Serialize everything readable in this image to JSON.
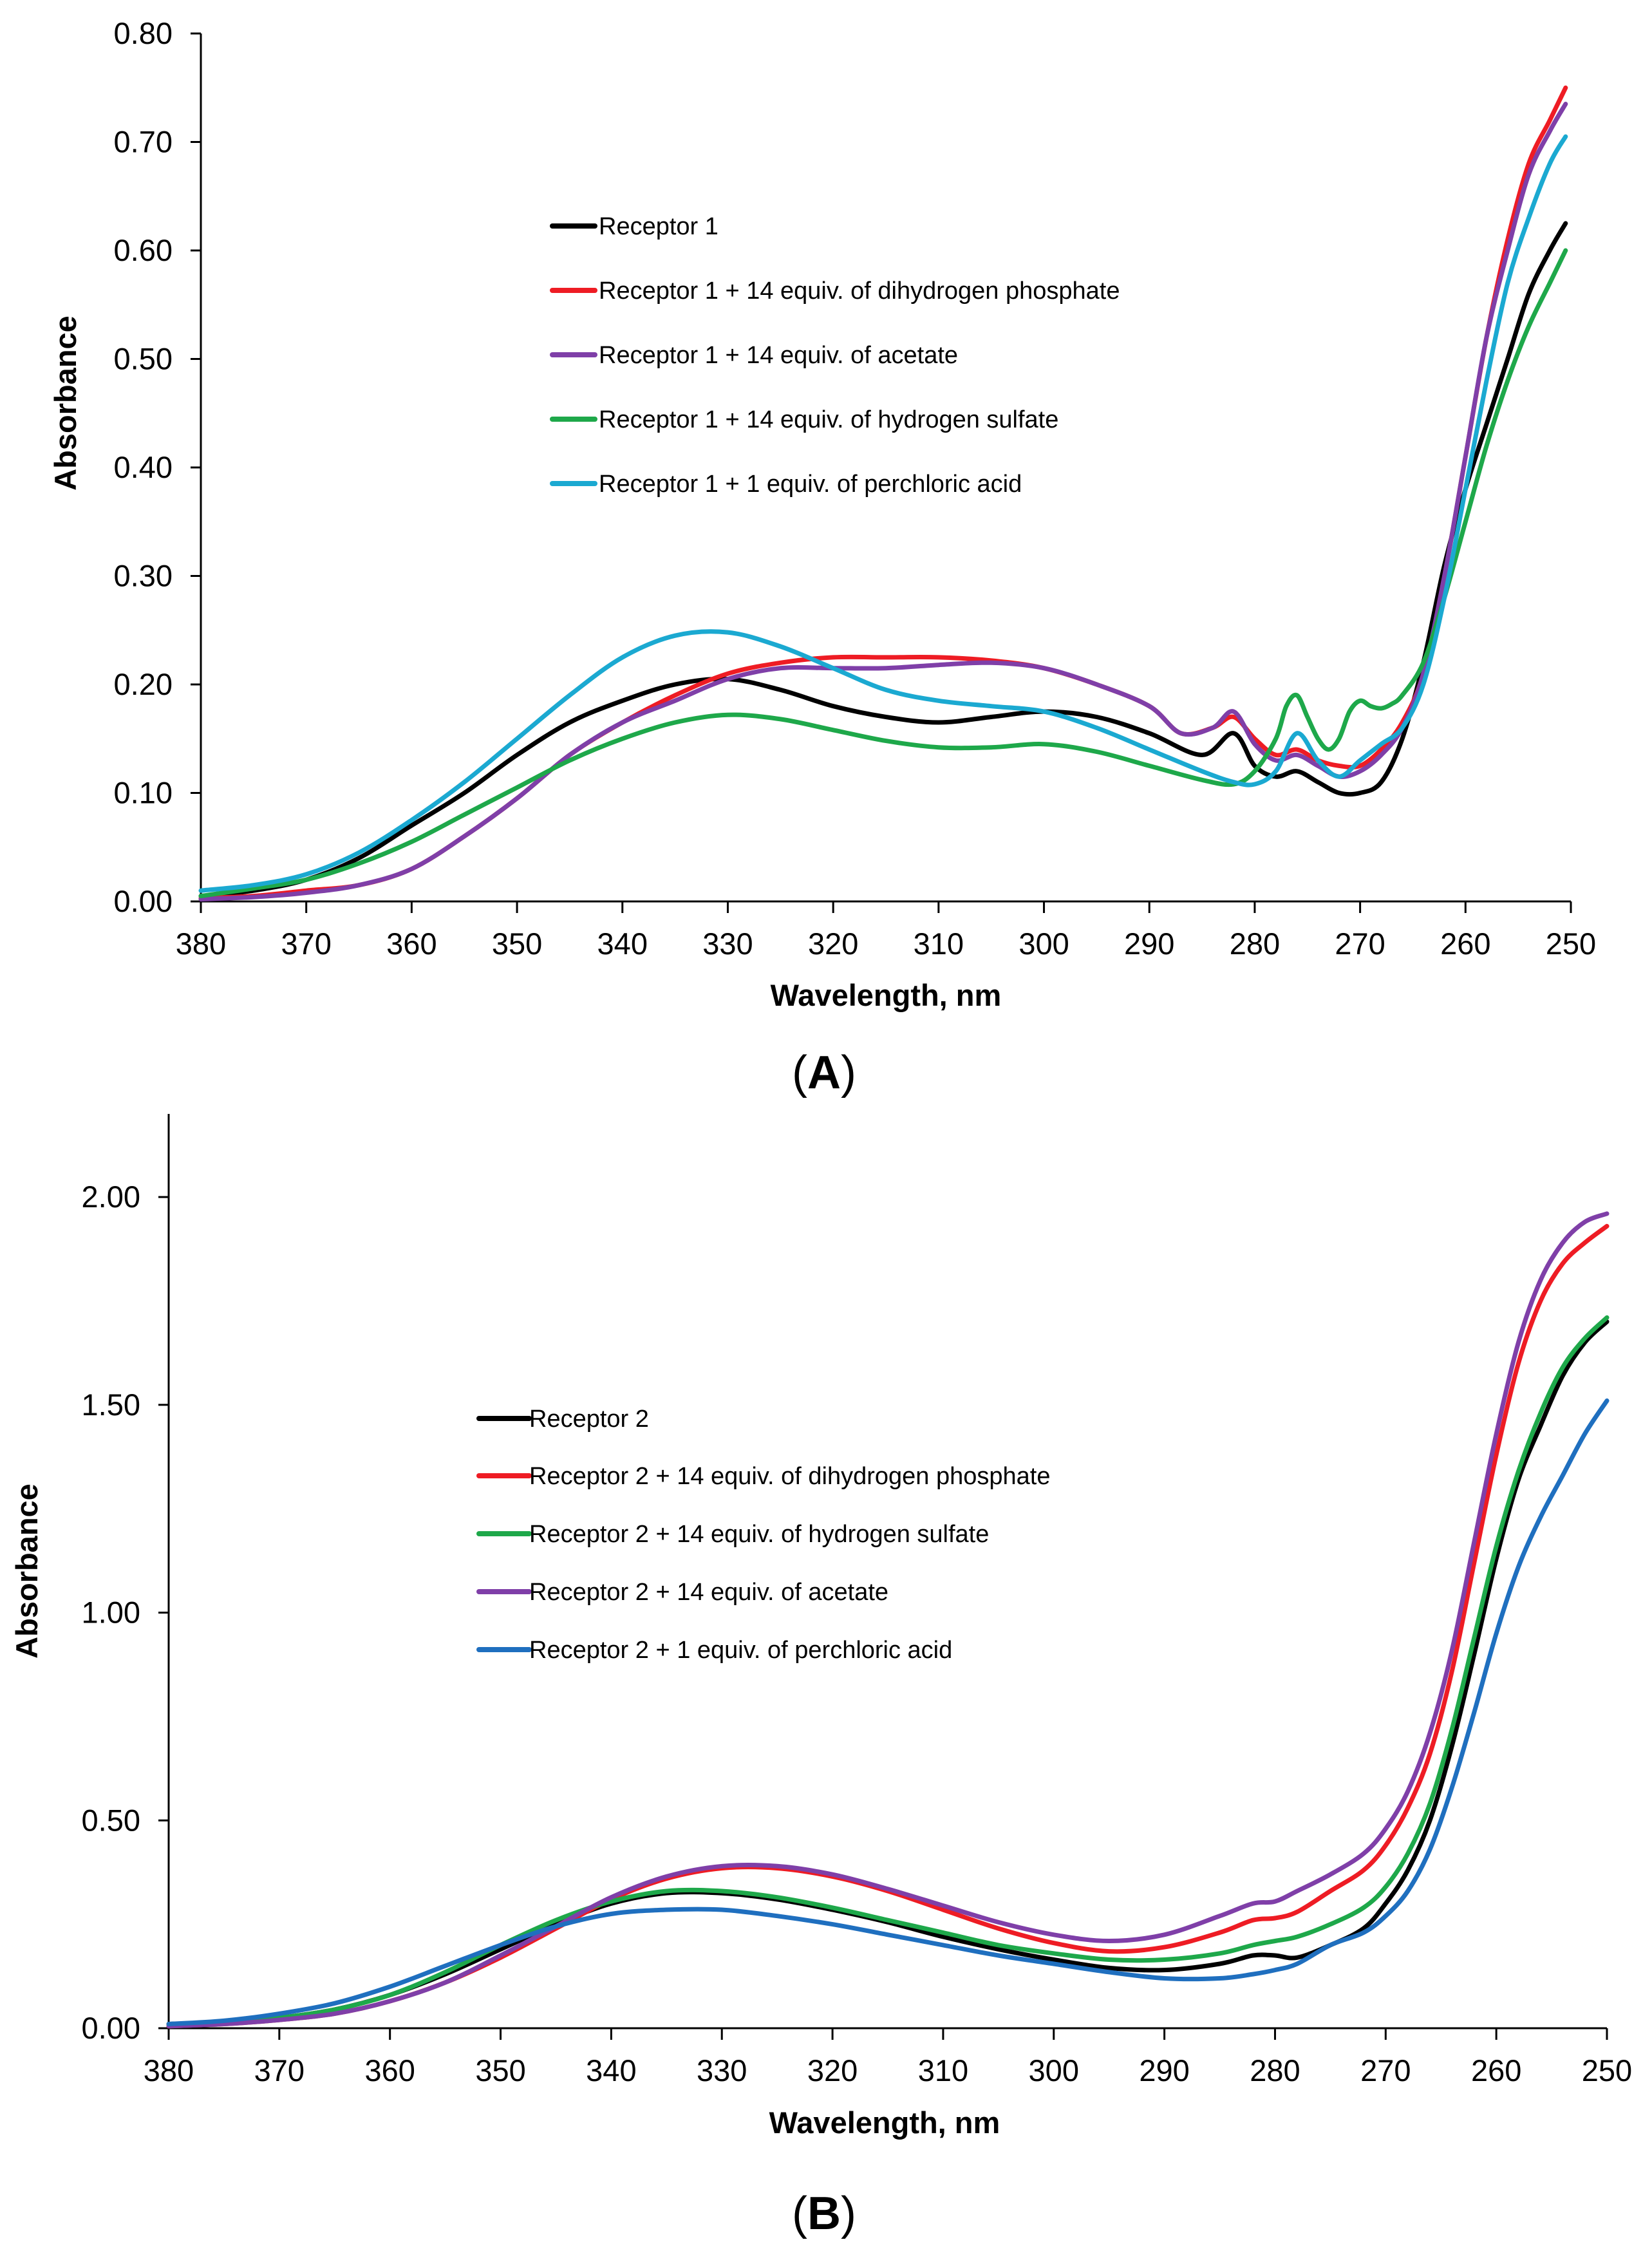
{
  "chart_data": [
    {
      "id": "A",
      "type": "line",
      "panel_label": "A",
      "xlabel": "Wavelength, nm",
      "ylabel": "Absorbance",
      "xlim": [
        380,
        250
      ],
      "ylim": [
        0,
        0.8
      ],
      "x_ticks": [
        "380",
        "370",
        "360",
        "350",
        "340",
        "330",
        "320",
        "310",
        "300",
        "290",
        "280",
        "270",
        "260",
        "250"
      ],
      "y_ticks": [
        "0.00",
        "0.10",
        "0.20",
        "0.30",
        "0.40",
        "0.50",
        "0.60",
        "0.70",
        "0.80"
      ],
      "legend_position": "upper-middle",
      "series": [
        {
          "name": "Receptor 1",
          "color": "#000000",
          "x": [
            380,
            375,
            370,
            365,
            360,
            355,
            350,
            345,
            340,
            335,
            330,
            325,
            320,
            315,
            310,
            305,
            300,
            295,
            290,
            285,
            282,
            280,
            278,
            276,
            274,
            272,
            270,
            268,
            266,
            264,
            262,
            260,
            258,
            256,
            254,
            252,
            250.5
          ],
          "y": [
            0.005,
            0.01,
            0.02,
            0.04,
            0.07,
            0.1,
            0.135,
            0.165,
            0.185,
            0.2,
            0.205,
            0.195,
            0.18,
            0.17,
            0.165,
            0.17,
            0.175,
            0.17,
            0.155,
            0.135,
            0.155,
            0.125,
            0.115,
            0.12,
            0.11,
            0.1,
            0.1,
            0.11,
            0.15,
            0.22,
            0.31,
            0.38,
            0.44,
            0.5,
            0.56,
            0.6,
            0.625
          ]
        },
        {
          "name": "Receptor 1 + 14 equiv. of dihydrogen phosphate",
          "color": "#ee1c24",
          "x": [
            380,
            375,
            370,
            365,
            360,
            355,
            350,
            345,
            340,
            335,
            330,
            325,
            320,
            315,
            310,
            305,
            300,
            295,
            290,
            287,
            284,
            282,
            280,
            278,
            276,
            274,
            272,
            270,
            268,
            266,
            264,
            262,
            260,
            258,
            256,
            254,
            252,
            250.5
          ],
          "y": [
            0.003,
            0.005,
            0.01,
            0.015,
            0.03,
            0.06,
            0.095,
            0.135,
            0.165,
            0.19,
            0.21,
            0.22,
            0.225,
            0.225,
            0.225,
            0.222,
            0.215,
            0.2,
            0.18,
            0.155,
            0.16,
            0.17,
            0.15,
            0.135,
            0.14,
            0.13,
            0.125,
            0.125,
            0.14,
            0.165,
            0.21,
            0.3,
            0.41,
            0.52,
            0.61,
            0.68,
            0.72,
            0.75
          ]
        },
        {
          "name": "Receptor 1 + 14 equiv. of acetate",
          "color": "#7f3fa8",
          "x": [
            380,
            375,
            370,
            365,
            360,
            355,
            350,
            345,
            340,
            335,
            330,
            325,
            320,
            315,
            310,
            305,
            300,
            295,
            290,
            287,
            284,
            282,
            280,
            278,
            276,
            274,
            272,
            270,
            268,
            266,
            264,
            262,
            260,
            258,
            256,
            254,
            252,
            250.5
          ],
          "y": [
            0.002,
            0.004,
            0.008,
            0.015,
            0.03,
            0.06,
            0.095,
            0.135,
            0.165,
            0.185,
            0.205,
            0.215,
            0.215,
            0.215,
            0.218,
            0.22,
            0.215,
            0.2,
            0.18,
            0.155,
            0.16,
            0.175,
            0.145,
            0.13,
            0.135,
            0.125,
            0.115,
            0.12,
            0.135,
            0.16,
            0.21,
            0.3,
            0.41,
            0.52,
            0.6,
            0.67,
            0.71,
            0.735
          ]
        },
        {
          "name": "Receptor 1 + 14  equiv. of hydrogen sulfate",
          "color": "#1ea84a",
          "x": [
            380,
            375,
            370,
            365,
            360,
            355,
            350,
            345,
            340,
            335,
            330,
            325,
            320,
            315,
            310,
            305,
            300,
            295,
            290,
            285,
            282,
            280,
            278,
            277,
            276,
            275,
            274,
            273,
            272,
            271,
            270,
            269,
            268,
            267,
            266,
            264,
            262,
            260,
            258,
            256,
            254,
            252,
            250.5
          ],
          "y": [
            0.005,
            0.012,
            0.02,
            0.035,
            0.055,
            0.08,
            0.105,
            0.13,
            0.15,
            0.165,
            0.172,
            0.168,
            0.158,
            0.148,
            0.142,
            0.142,
            0.145,
            0.138,
            0.125,
            0.112,
            0.108,
            0.12,
            0.15,
            0.18,
            0.19,
            0.17,
            0.15,
            0.14,
            0.15,
            0.175,
            0.185,
            0.18,
            0.178,
            0.182,
            0.19,
            0.22,
            0.28,
            0.35,
            0.42,
            0.48,
            0.53,
            0.57,
            0.6
          ]
        },
        {
          "name": "Receptor 1 + 1 equiv. of perchloric acid",
          "color": "#1ba9d1",
          "x": [
            380,
            375,
            370,
            365,
            360,
            355,
            350,
            345,
            340,
            335,
            330,
            325,
            320,
            315,
            310,
            305,
            300,
            295,
            290,
            285,
            282,
            280,
            278,
            276,
            274,
            272,
            270,
            268,
            266,
            264,
            262,
            260,
            258,
            256,
            254,
            252,
            250.5
          ],
          "y": [
            0.01,
            0.015,
            0.025,
            0.045,
            0.075,
            0.11,
            0.15,
            0.19,
            0.225,
            0.245,
            0.248,
            0.235,
            0.215,
            0.195,
            0.185,
            0.18,
            0.175,
            0.16,
            0.14,
            0.12,
            0.11,
            0.108,
            0.12,
            0.155,
            0.13,
            0.115,
            0.13,
            0.145,
            0.16,
            0.2,
            0.28,
            0.38,
            0.48,
            0.57,
            0.63,
            0.68,
            0.705
          ]
        }
      ]
    },
    {
      "id": "B",
      "type": "line",
      "panel_label": "B",
      "xlabel": "Wavelength, nm",
      "ylabel": "Absorbance",
      "xlim": [
        380,
        250
      ],
      "ylim": [
        0,
        2.2
      ],
      "x_ticks": [
        "380",
        "370",
        "360",
        "350",
        "340",
        "330",
        "320",
        "310",
        "300",
        "290",
        "280",
        "270",
        "260",
        "250"
      ],
      "y_ticks": [
        "0.00",
        "0.50",
        "1.00",
        "1.50",
        "2.00"
      ],
      "legend_position": "middle-left",
      "series": [
        {
          "name": "Receptor 2",
          "color": "#000000",
          "x": [
            380,
            375,
            370,
            365,
            360,
            355,
            350,
            345,
            340,
            335,
            330,
            325,
            320,
            315,
            310,
            305,
            300,
            295,
            290,
            285,
            282,
            280,
            278,
            275,
            272,
            270,
            268,
            266,
            264,
            262,
            260,
            258,
            256,
            254,
            252,
            250
          ],
          "y": [
            0.01,
            0.015,
            0.025,
            0.045,
            0.08,
            0.13,
            0.19,
            0.25,
            0.3,
            0.325,
            0.325,
            0.31,
            0.285,
            0.255,
            0.22,
            0.19,
            0.165,
            0.145,
            0.14,
            0.155,
            0.175,
            0.175,
            0.17,
            0.2,
            0.24,
            0.3,
            0.38,
            0.5,
            0.68,
            0.9,
            1.13,
            1.32,
            1.45,
            1.57,
            1.65,
            1.7
          ]
        },
        {
          "name": "Receptor 2 + 14  equiv. of dihydrogen phosphate",
          "color": "#ee1c24",
          "x": [
            380,
            375,
            370,
            365,
            360,
            355,
            350,
            345,
            340,
            335,
            330,
            325,
            320,
            315,
            310,
            305,
            300,
            295,
            290,
            285,
            282,
            280,
            278,
            275,
            272,
            270,
            268,
            266,
            264,
            262,
            260,
            258,
            256,
            254,
            252,
            250
          ],
          "y": [
            0.005,
            0.01,
            0.02,
            0.035,
            0.065,
            0.11,
            0.17,
            0.24,
            0.31,
            0.36,
            0.385,
            0.385,
            0.365,
            0.33,
            0.285,
            0.24,
            0.205,
            0.185,
            0.195,
            0.23,
            0.26,
            0.265,
            0.28,
            0.33,
            0.38,
            0.44,
            0.53,
            0.66,
            0.86,
            1.12,
            1.38,
            1.6,
            1.75,
            1.84,
            1.89,
            1.93
          ]
        },
        {
          "name": "Receptor 2 + 14  equiv. of hydrogen sulfate",
          "color": "#1ea84a",
          "x": [
            380,
            375,
            370,
            365,
            360,
            355,
            350,
            345,
            340,
            335,
            330,
            325,
            320,
            315,
            310,
            305,
            300,
            295,
            290,
            285,
            282,
            280,
            278,
            275,
            272,
            270,
            268,
            266,
            264,
            262,
            260,
            258,
            256,
            254,
            252,
            250
          ],
          "y": [
            0.01,
            0.015,
            0.025,
            0.045,
            0.08,
            0.135,
            0.2,
            0.26,
            0.305,
            0.33,
            0.33,
            0.315,
            0.29,
            0.26,
            0.23,
            0.2,
            0.18,
            0.165,
            0.165,
            0.18,
            0.2,
            0.21,
            0.22,
            0.25,
            0.29,
            0.34,
            0.42,
            0.54,
            0.72,
            0.94,
            1.16,
            1.34,
            1.48,
            1.59,
            1.66,
            1.71
          ]
        },
        {
          "name": "Receptor 2 + 14  equiv. of acetate",
          "color": "#7f3fa8",
          "x": [
            380,
            375,
            370,
            365,
            360,
            355,
            350,
            345,
            340,
            335,
            330,
            325,
            320,
            315,
            310,
            305,
            300,
            295,
            290,
            285,
            282,
            280,
            278,
            275,
            272,
            270,
            268,
            266,
            264,
            262,
            260,
            258,
            256,
            254,
            252,
            250
          ],
          "y": [
            0.005,
            0.01,
            0.02,
            0.035,
            0.065,
            0.11,
            0.175,
            0.245,
            0.315,
            0.365,
            0.39,
            0.39,
            0.37,
            0.335,
            0.295,
            0.255,
            0.225,
            0.21,
            0.225,
            0.27,
            0.3,
            0.305,
            0.33,
            0.37,
            0.42,
            0.48,
            0.57,
            0.71,
            0.91,
            1.17,
            1.43,
            1.65,
            1.8,
            1.89,
            1.94,
            1.96
          ]
        },
        {
          "name": "Receptor 2 + 1 equiv. of perchloric acid",
          "color": "#1f6fbf",
          "x": [
            380,
            375,
            370,
            365,
            360,
            355,
            350,
            345,
            340,
            335,
            330,
            325,
            320,
            315,
            310,
            305,
            300,
            295,
            290,
            285,
            282,
            280,
            278,
            275,
            272,
            270,
            268,
            266,
            264,
            262,
            260,
            258,
            256,
            254,
            252,
            250
          ],
          "y": [
            0.01,
            0.018,
            0.035,
            0.06,
            0.1,
            0.15,
            0.2,
            0.245,
            0.275,
            0.285,
            0.285,
            0.27,
            0.25,
            0.225,
            0.2,
            0.175,
            0.155,
            0.135,
            0.12,
            0.12,
            0.13,
            0.14,
            0.155,
            0.2,
            0.23,
            0.27,
            0.33,
            0.43,
            0.58,
            0.76,
            0.95,
            1.11,
            1.23,
            1.33,
            1.43,
            1.51
          ]
        }
      ]
    }
  ]
}
